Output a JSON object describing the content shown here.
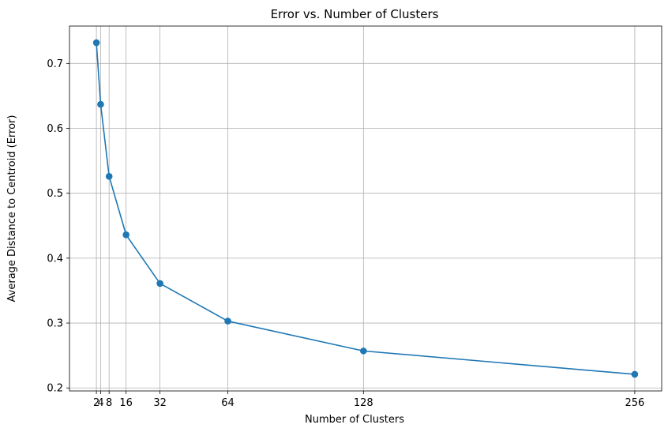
{
  "chart_data": {
    "type": "line",
    "title": "Error vs. Number of Clusters",
    "xlabel": "Number of Clusters",
    "ylabel": "Average Distance to Centroid (Error)",
    "x": [
      2,
      4,
      8,
      16,
      32,
      64,
      128,
      256
    ],
    "series": [
      {
        "values": [
          0.732,
          0.637,
          0.526,
          0.436,
          0.361,
          0.303,
          0.257,
          0.221
        ],
        "color": "#1f77b4",
        "marker": "circle"
      }
    ],
    "xticks": [
      2,
      4,
      8,
      16,
      32,
      64,
      128,
      256
    ],
    "xtick_labels": [
      "2",
      "4",
      "8",
      "16",
      "32",
      "64",
      "128",
      "256"
    ],
    "yticks": [
      0.2,
      0.3,
      0.4,
      0.5,
      0.6,
      0.7
    ],
    "ytick_labels": [
      "0.2",
      "0.3",
      "0.4",
      "0.5",
      "0.6",
      "0.7"
    ],
    "xlim": [
      -10.7,
      268.7
    ],
    "ylim": [
      0.1954,
      0.7576
    ],
    "grid": true,
    "grid_color": "#b0b0b0",
    "legend": false
  }
}
